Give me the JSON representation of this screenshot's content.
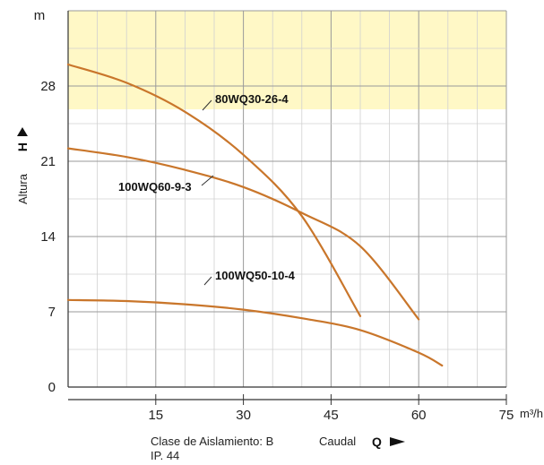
{
  "chart_data": {
    "type": "line",
    "x_unit": "m³/h",
    "y_unit": "m",
    "xlabel_word": "Caudal",
    "xlabel_symbol": "Q",
    "ylabel_word": "Altura",
    "ylabel_symbol": "H",
    "xlim": [
      0,
      75
    ],
    "ylim": [
      0,
      35
    ],
    "x_ticks": [
      15,
      30,
      45,
      60,
      75
    ],
    "x_tick_labels": [
      "15",
      "30",
      "45",
      "60",
      "75"
    ],
    "y_ticks": [
      0,
      7,
      14,
      21,
      28
    ],
    "y_tick_labels": [
      "0",
      "7",
      "14",
      "21",
      "28"
    ],
    "grid": true,
    "curve_color": "#c9762b",
    "background_band_color": "#fff8c6",
    "series": [
      {
        "name": "80WQ30-26-4",
        "x": [
          0,
          10,
          20,
          30,
          40,
          50
        ],
        "y": [
          30,
          28.3,
          25.6,
          21.6,
          15.9,
          6.6
        ]
      },
      {
        "name": "100WQ60-9-3",
        "x": [
          0,
          10,
          20,
          30,
          40,
          50,
          60
        ],
        "y": [
          22.2,
          21.4,
          20.2,
          18.6,
          16.2,
          13.1,
          6.3
        ]
      },
      {
        "name": "100WQ50-10-4",
        "x": [
          0,
          10,
          20,
          30,
          40,
          50,
          60,
          64
        ],
        "y": [
          8.1,
          8.0,
          7.7,
          7.2,
          6.4,
          5.3,
          3.2,
          2.0
        ]
      }
    ]
  },
  "notes": {
    "insulation": "Clase de Aislamiento: B",
    "protection": "IP. 44"
  }
}
